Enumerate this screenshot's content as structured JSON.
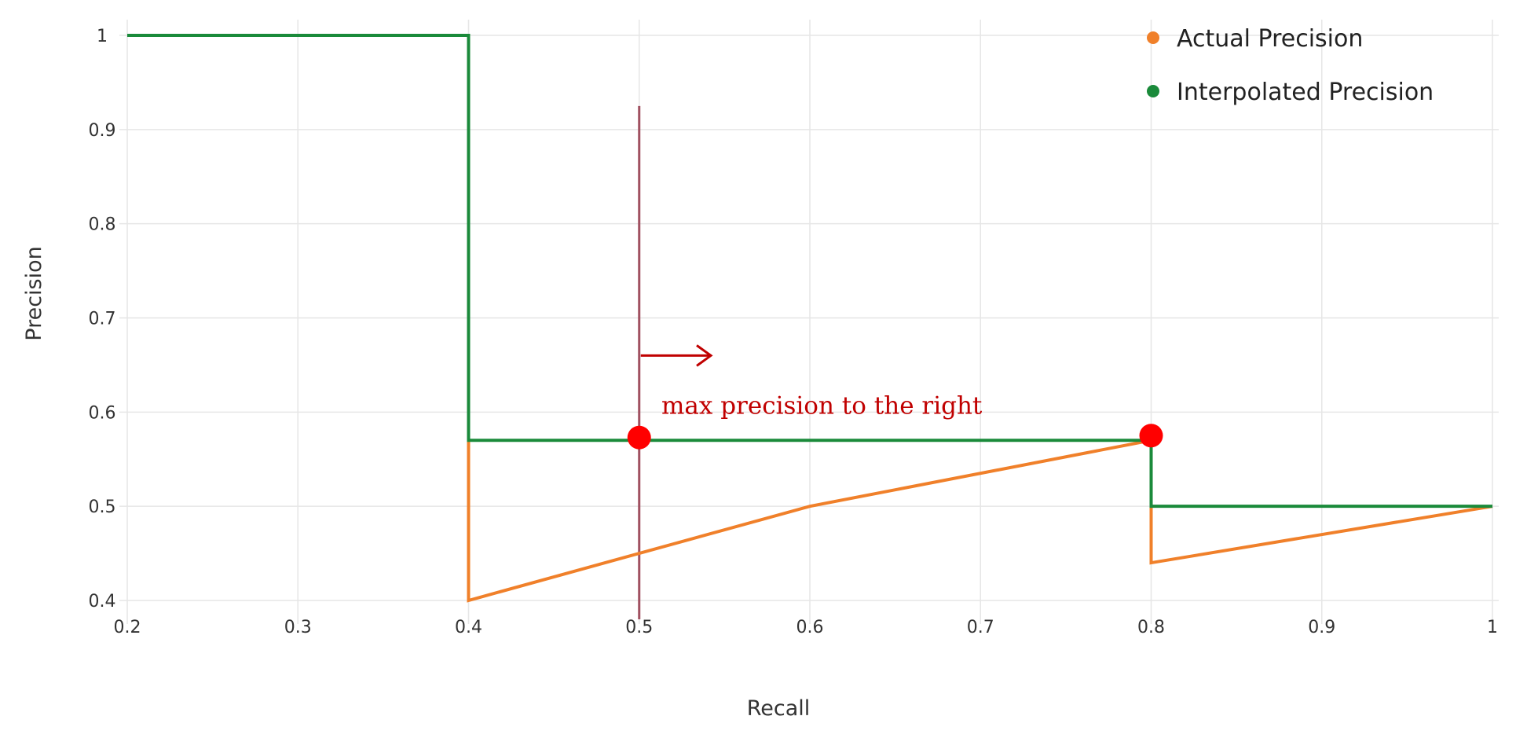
{
  "chart_data": {
    "type": "line",
    "title": "",
    "xlabel": "Recall",
    "ylabel": "Precision",
    "xlim": [
      0.2,
      1
    ],
    "ylim": [
      0.375,
      1.01
    ],
    "x_ticks": [
      0.2,
      0.3,
      0.4,
      0.5,
      0.6,
      0.7,
      0.8,
      0.9,
      1
    ],
    "x_tick_labels": [
      "0.2",
      "0.3",
      "0.4",
      "0.5",
      "0.6",
      "0.7",
      "0.8",
      "0.9",
      "1"
    ],
    "y_ticks": [
      0.4,
      0.5,
      0.6,
      0.7,
      0.8,
      0.9,
      1
    ],
    "y_tick_labels": [
      "0.4",
      "0.5",
      "0.6",
      "0.7",
      "0.8",
      "0.9",
      "1"
    ],
    "grid": true,
    "legend_position": "top-right",
    "series": [
      {
        "name": "Actual Precision",
        "color": "#f0802a",
        "x": [
          0.4,
          0.4,
          0.6,
          0.8,
          0.8,
          1.0
        ],
        "y": [
          0.57,
          0.4,
          0.5,
          0.57,
          0.44,
          0.5
        ]
      },
      {
        "name": "Interpolated Precision",
        "color": "#1a8a3a",
        "x": [
          0.2,
          0.4,
          0.4,
          0.8,
          0.8,
          1.0
        ],
        "y": [
          1.0,
          1.0,
          0.57,
          0.57,
          0.5,
          0.5
        ]
      }
    ],
    "markers": [
      {
        "x": 0.5,
        "y": 0.573,
        "color": "#ff0000"
      },
      {
        "x": 0.8,
        "y": 0.575,
        "color": "#ff0000"
      }
    ],
    "vertical_line": {
      "x": 0.5,
      "y_from": 0.38,
      "y_to": 0.925,
      "color": "#a05060"
    },
    "annotation": {
      "text": "max precision to the right",
      "x": 0.513,
      "y": 0.603,
      "color": "#c00000",
      "arrow": {
        "x_from": 0.5,
        "x_to": 0.542,
        "y": 0.66
      }
    }
  }
}
